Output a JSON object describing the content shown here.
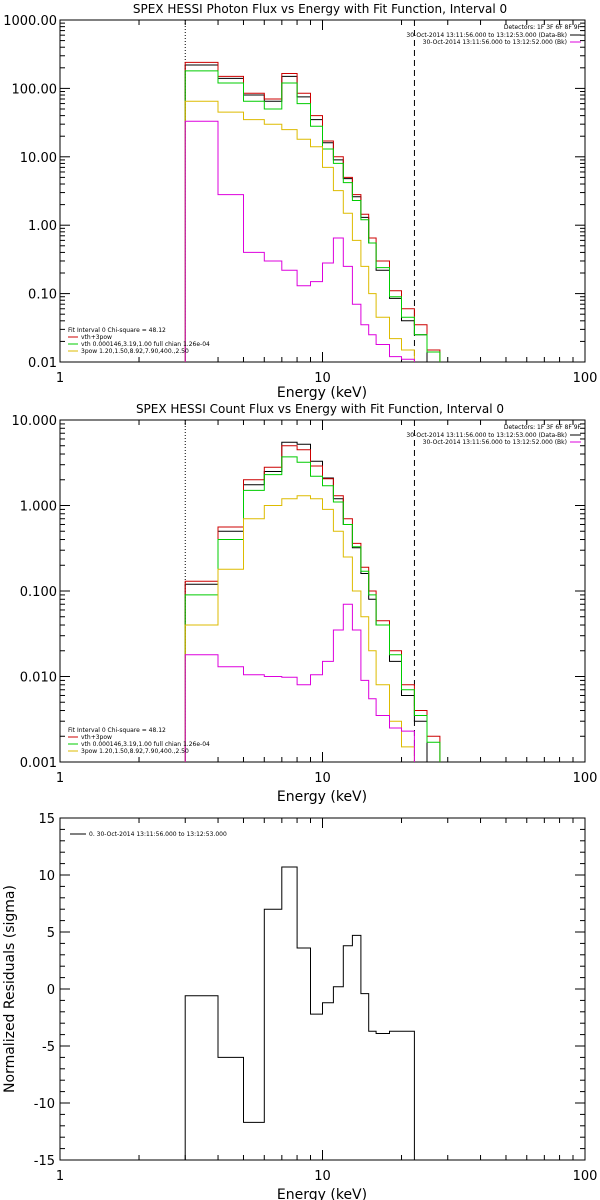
{
  "chart_data": [
    {
      "type": "line",
      "title": "SPEX HESSI Photon Flux vs Energy with Fit Function, Interval 0",
      "xlabel": "Energy (keV)",
      "ylabel": "",
      "xscale": "log",
      "yscale": "log",
      "xlim": [
        1,
        100
      ],
      "ylim": [
        0.01,
        1000
      ],
      "x_ticks": [
        "1",
        "10",
        "100"
      ],
      "y_ticks": [
        "0.01",
        "0.10",
        "1.00",
        "10.00",
        "100.00",
        "1000.00"
      ],
      "legend_top": {
        "placement": "top-right",
        "header": "Detectors: 1F 3F 6F 8F 9F",
        "entries": [
          {
            "text": "30-Oct-2014 13:11:56.000 to 13:12:53.000 (Data-Bk)",
            "color": "#000000"
          },
          {
            "text": "30-Oct-2014 13:11:56.000 to 13:12:52.000 (Bk)",
            "color": "#dd00dd"
          }
        ]
      },
      "legend_bottom": {
        "placement": "bottom-left",
        "header": "Fit Interval 0   Chi-square = 48.12",
        "entries": [
          {
            "text": "vth+3pow",
            "color": "#cc0000"
          },
          {
            "text": "vth 0.000146,3.19,1.00   full chian 1.26e-04",
            "color": "#00cc00"
          },
          {
            "text": "3pow 1.20,1.50,8.92,7.90,400.,2.50",
            "color": "#ddbb00"
          }
        ]
      },
      "vlines": [
        {
          "x": 3.0,
          "style": "dotted",
          "color": "#000000"
        },
        {
          "x": 22.4,
          "style": "dashed",
          "color": "#000000"
        }
      ],
      "bin_edges": [
        3.0,
        4.0,
        5.0,
        6.0,
        7.0,
        8.0,
        9.0,
        10.0,
        11.0,
        12.0,
        13.0,
        14.0,
        15.0,
        16.0,
        18.0,
        20.0,
        22.4,
        25.0,
        28.0
      ],
      "series": [
        {
          "name": "",
          "color": "#000000",
          "values": [
            220,
            140,
            80,
            65,
            150,
            75,
            35,
            16,
            9,
            4.8,
            2.6,
            1.3,
            0.55,
            0.22,
            0.085,
            0.04,
            0.025,
            null
          ]
        },
        {
          "name": "vth+3pow",
          "color": "#cc0000",
          "values": [
            240,
            150,
            85,
            70,
            165,
            85,
            40,
            17,
            10,
            5,
            2.8,
            1.45,
            0.65,
            0.3,
            0.11,
            0.06,
            0.035,
            0.015
          ]
        },
        {
          "name": "vth",
          "color": "#00cc00",
          "values": [
            180,
            120,
            65,
            50,
            120,
            60,
            28,
            13,
            8,
            4.2,
            2.3,
            1.2,
            0.55,
            0.24,
            0.09,
            0.045,
            0.025,
            0.014
          ]
        },
        {
          "name": "3pow",
          "color": "#ddbb00",
          "values": [
            65,
            45,
            35,
            30,
            25,
            18,
            14,
            7,
            3.2,
            1.5,
            0.6,
            0.25,
            0.1,
            0.045,
            0.022,
            0.015,
            null,
            null
          ]
        },
        {
          "name": "",
          "color": "#dd00dd",
          "values": [
            33,
            2.8,
            0.4,
            0.3,
            0.22,
            0.13,
            0.15,
            0.28,
            0.65,
            0.25,
            0.07,
            0.035,
            0.025,
            0.018,
            0.012,
            0.011,
            null,
            null
          ]
        }
      ]
    },
    {
      "type": "line",
      "title": "SPEX HESSI Count Flux vs Energy with Fit Function, Interval 0",
      "xlabel": "Energy (keV)",
      "ylabel": "",
      "xscale": "log",
      "yscale": "log",
      "xlim": [
        1,
        100
      ],
      "ylim": [
        0.001,
        10
      ],
      "x_ticks": [
        "1",
        "10",
        "100"
      ],
      "y_ticks": [
        "0.001",
        "0.010",
        "0.100",
        "1.000",
        "10.000"
      ],
      "legend_top": {
        "placement": "top-right",
        "header": "Detectors: 1F 3F 6F 8F 9F",
        "entries": [
          {
            "text": "30-Oct-2014 13:11:56.000 to 13:12:53.000 (Data-Bk)",
            "color": "#000000"
          },
          {
            "text": "30-Oct-2014 13:11:56.000 to 13:12:52.000 (Bk)",
            "color": "#dd00dd"
          }
        ]
      },
      "legend_bottom": {
        "placement": "bottom-left",
        "header": "Fit Interval 0   Chi-square = 48.12",
        "entries": [
          {
            "text": "vth+3pow",
            "color": "#cc0000"
          },
          {
            "text": "vth 0.000146,3.19,1.00   full chian 1.26e-04",
            "color": "#00cc00"
          },
          {
            "text": "3pow 1.20,1.50,8.92,7.90,400.,2.50",
            "color": "#ddbb00"
          }
        ]
      },
      "vlines": [
        {
          "x": 3.0,
          "style": "dotted",
          "color": "#000000"
        },
        {
          "x": 22.4,
          "style": "dashed",
          "color": "#000000"
        }
      ],
      "bin_edges": [
        3.0,
        4.0,
        5.0,
        6.0,
        7.0,
        8.0,
        9.0,
        10.0,
        11.0,
        12.0,
        13.0,
        14.0,
        15.0,
        16.0,
        18.0,
        20.0,
        22.4,
        25.0,
        28.0
      ],
      "series": [
        {
          "name": "",
          "color": "#000000",
          "values": [
            0.12,
            0.5,
            1.75,
            2.5,
            5.5,
            5.2,
            3.3,
            2.1,
            1.2,
            0.6,
            0.32,
            0.16,
            0.08,
            0.04,
            0.015,
            0.006,
            0.003,
            null
          ]
        },
        {
          "name": "vth+3pow",
          "color": "#cc0000",
          "values": [
            0.13,
            0.56,
            2.0,
            2.8,
            5.0,
            4.5,
            2.9,
            2.05,
            1.3,
            0.7,
            0.36,
            0.19,
            0.1,
            0.045,
            0.02,
            0.008,
            0.004,
            0.002
          ]
        },
        {
          "name": "vth",
          "color": "#00cc00",
          "values": [
            0.09,
            0.4,
            1.5,
            2.3,
            3.7,
            3.2,
            2.2,
            1.7,
            1.1,
            0.6,
            0.33,
            0.17,
            0.09,
            0.04,
            0.018,
            0.007,
            0.0035,
            0.0017
          ]
        },
        {
          "name": "3pow",
          "color": "#ddbb00",
          "values": [
            0.04,
            0.18,
            0.7,
            1.0,
            1.2,
            1.3,
            1.2,
            0.9,
            0.5,
            0.25,
            0.1,
            0.05,
            0.02,
            0.008,
            0.003,
            0.0015,
            null,
            null
          ]
        },
        {
          "name": "",
          "color": "#dd00dd",
          "values": [
            0.018,
            0.013,
            0.0105,
            0.01,
            0.0098,
            0.008,
            0.0105,
            0.015,
            0.035,
            0.07,
            0.035,
            0.009,
            0.0055,
            0.0035,
            0.0025,
            0.0023,
            null,
            null
          ]
        }
      ]
    },
    {
      "type": "line",
      "title": "",
      "xlabel": "Energy (keV)",
      "ylabel": "Normalized Residuals (sigma)",
      "xscale": "log",
      "yscale": "linear",
      "xlim": [
        1,
        100
      ],
      "ylim": [
        -15,
        15
      ],
      "x_ticks": [
        "1",
        "10",
        "100"
      ],
      "y_ticks": [
        "-15",
        "-10",
        "-5",
        "0",
        "5",
        "10",
        "15"
      ],
      "legend": {
        "placement": "top-left",
        "entries": [
          {
            "text": "0. 30-Oct-2014 13:11:56.000 to 13:12:53.000",
            "color": "#000000"
          }
        ]
      },
      "bin_edges": [
        3.0,
        4.0,
        5.0,
        6.0,
        7.0,
        8.0,
        9.0,
        10.0,
        11.0,
        12.0,
        13.0,
        14.0,
        15.0,
        16.0,
        18.0,
        20.0,
        22.4
      ],
      "series": [
        {
          "name": "",
          "color": "#000000",
          "values": [
            -0.6,
            -6.0,
            -11.7,
            7.0,
            10.7,
            3.6,
            -2.2,
            -1.2,
            0.2,
            3.8,
            4.7,
            -0.4,
            -3.7,
            -3.9,
            -3.7,
            -3.7
          ]
        }
      ]
    }
  ]
}
